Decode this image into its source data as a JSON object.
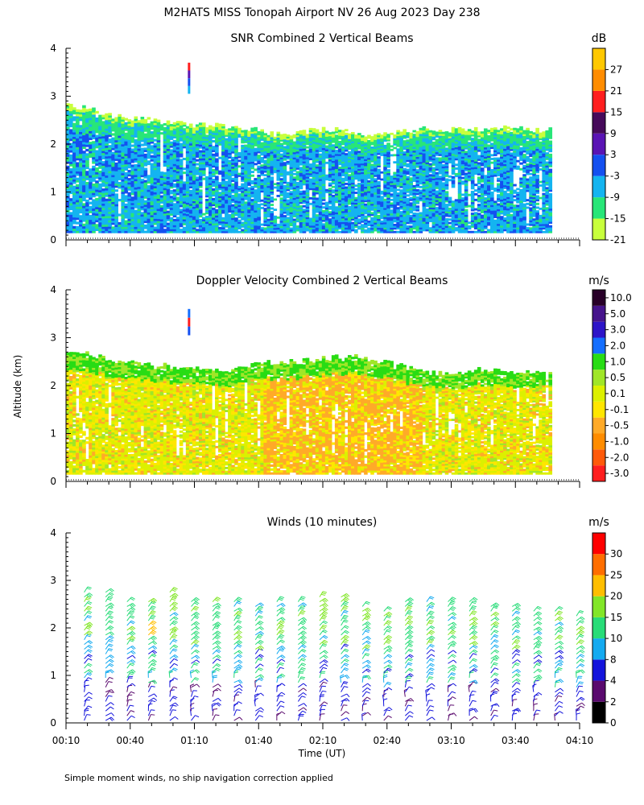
{
  "figure_title": "M2HATS MISS Tonopah Airport NV  26 Aug 2023 Day 238",
  "ylabel": "Altitude (km)",
  "xlabel": "Time (UT)",
  "footnote": "Simple moment winds, no ship navigation correction applied",
  "chart_data": [
    {
      "type": "heatmap",
      "title": "SNR Combined 2 Vertical Beams",
      "units": "dB",
      "ylim": [
        0,
        4
      ],
      "yticks": [
        "0",
        "1",
        "2",
        "3",
        "4"
      ],
      "xlim_hours": [
        0.1667,
        4.1667
      ],
      "x_start_hour": 0.1667,
      "x_end_hour": 3.95,
      "echo_top_km": [
        2.8,
        2.75,
        2.6,
        2.55,
        2.5,
        2.45,
        2.4,
        2.4,
        2.35,
        2.3,
        2.2,
        2.25,
        2.3,
        2.3,
        2.2,
        2.2,
        2.25,
        2.35,
        2.3,
        2.3,
        2.3,
        2.35,
        2.3,
        2.3
      ],
      "colorbar_labels": [
        "-21",
        "-15",
        "-9",
        "-3",
        "3",
        "9",
        "15",
        "21",
        "27"
      ],
      "colorbar_colors": [
        "#c8ff3c",
        "#28e678",
        "#14b4f0",
        "#1450f0",
        "#5a14b4",
        "#460a5a",
        "#ff1e1e",
        "#ff8c00",
        "#ffc800"
      ],
      "field_colors": [
        "#c8ff3c",
        "#28e678",
        "#14b4f0",
        "#1450f0"
      ],
      "isolated_echo": {
        "hour": 1.125,
        "base_km": 3.05,
        "top_km": 3.7
      }
    },
    {
      "type": "heatmap",
      "title": "Doppler Velocity Combined 2 Vertical Beams",
      "units": "m/s",
      "ylim": [
        0,
        4
      ],
      "yticks": [
        "0",
        "1",
        "2",
        "3",
        "4"
      ],
      "xlim_hours": [
        0.1667,
        4.1667
      ],
      "x_start_hour": 0.1667,
      "x_end_hour": 3.95,
      "echo_top_km": [
        2.75,
        2.65,
        2.55,
        2.5,
        2.45,
        2.4,
        2.35,
        2.3,
        2.35,
        2.45,
        2.5,
        2.5,
        2.55,
        2.6,
        2.6,
        2.5,
        2.4,
        2.3,
        2.25,
        2.3,
        2.35,
        2.3,
        2.3,
        2.3
      ],
      "colorbar_labels": [
        "-3.0",
        "-2.0",
        "-1.0",
        "-0.5",
        "-0.1",
        "0.1",
        "0.5",
        "1.0",
        "2.0",
        "3.0",
        "5.0",
        "10.0"
      ],
      "colorbar_colors": [
        "#ff1e1e",
        "#ff5a0a",
        "#ff8c00",
        "#ffaa28",
        "#ffe600",
        "#dcf000",
        "#a0e628",
        "#28dc14",
        "#146eff",
        "#2d14c8",
        "#46148c",
        "#280028"
      ],
      "field_colors": [
        "#dcf000",
        "#ffe600",
        "#a0e628",
        "#ffaa28",
        "#28dc14"
      ],
      "isolated_echo": {
        "hour": 1.125,
        "base_km": 3.05,
        "top_km": 3.6
      }
    },
    {
      "type": "wind_profile",
      "title": "Winds (10 minutes)",
      "units": "m/s",
      "ylim": [
        0,
        4
      ],
      "yticks": [
        "0",
        "1",
        "2",
        "3",
        "4"
      ],
      "xlim_hours": [
        0.1667,
        4.1667
      ],
      "x_tick_labels": [
        "00:10",
        "00:40",
        "01:10",
        "01:40",
        "02:10",
        "02:40",
        "03:10",
        "03:40",
        "04:10"
      ],
      "profile_tops_km": [
        2.85,
        2.85,
        2.65,
        2.65,
        2.85,
        2.65,
        2.65,
        2.65,
        2.55,
        2.65,
        2.65,
        2.7,
        2.75,
        2.55,
        2.45,
        2.65,
        2.6,
        2.6,
        2.6,
        2.5,
        2.5,
        2.4,
        2.45,
        2.3
      ],
      "colorbar_labels": [
        "0",
        "2",
        "4",
        "8",
        "10",
        "15",
        "20",
        "25",
        "30"
      ],
      "colorbar_colors": [
        "#000000",
        "#5a0a6e",
        "#1414dc",
        "#14aaf0",
        "#28dc78",
        "#82e628",
        "#ffbe00",
        "#ff6e00",
        "#ff0000"
      ]
    }
  ]
}
